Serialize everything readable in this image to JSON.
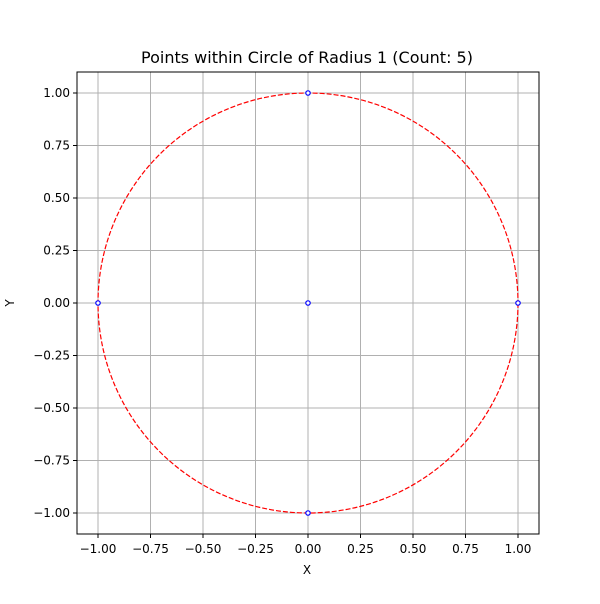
{
  "chart_data": {
    "type": "scatter",
    "title": "Points within Circle of Radius 1 (Count: 5)",
    "xlabel": "X",
    "ylabel": "Y",
    "xlim": [
      -1.1,
      1.1
    ],
    "ylim": [
      -1.1,
      1.1
    ],
    "x_ticks": [
      -1.0,
      -0.75,
      -0.5,
      -0.25,
      0.0,
      0.25,
      0.5,
      0.75,
      1.0
    ],
    "y_ticks": [
      -1.0,
      -0.75,
      -0.5,
      -0.25,
      0.0,
      0.25,
      0.5,
      0.75,
      1.0
    ],
    "x_tick_labels": [
      "−1.00",
      "−0.75",
      "−0.50",
      "−0.25",
      "0.00",
      "0.25",
      "0.50",
      "0.75",
      "1.00"
    ],
    "y_tick_labels": [
      "−1.00",
      "−0.75",
      "−0.50",
      "−0.25",
      "0.00",
      "0.25",
      "0.50",
      "0.75",
      "1.00"
    ],
    "grid": true,
    "points": [
      {
        "x": 0.0,
        "y": 1.0
      },
      {
        "x": -1.0,
        "y": 0.0
      },
      {
        "x": 0.0,
        "y": 0.0
      },
      {
        "x": 1.0,
        "y": 0.0
      },
      {
        "x": 0.0,
        "y": -1.0
      }
    ],
    "circle": {
      "center": [
        0.0,
        0.0
      ],
      "radius": 1.0,
      "style": "dashed"
    },
    "colors": {
      "point_edge": "#0000ff",
      "point_fill": "#ffffff",
      "circle": "#ff0000",
      "grid": "#b0b0b0",
      "axes": "#000000"
    }
  }
}
